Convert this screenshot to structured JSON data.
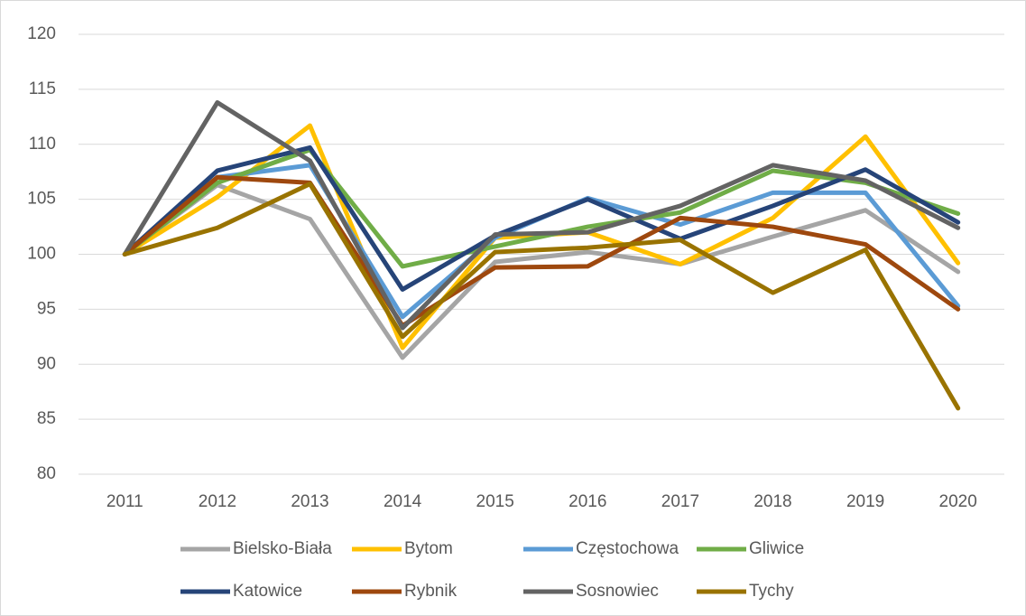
{
  "chart_data": {
    "type": "line",
    "categories": [
      "2011",
      "2012",
      "2013",
      "2014",
      "2015",
      "2016",
      "2017",
      "2018",
      "2019",
      "2020"
    ],
    "ylim": [
      80,
      120
    ],
    "yticks": [
      80,
      85,
      90,
      95,
      100,
      105,
      110,
      115,
      120
    ],
    "grid": true,
    "legend": "bottom",
    "series": [
      {
        "name": "Bielsko-Biała",
        "color": "#a5a5a5",
        "values": [
          100,
          106.3,
          103.2,
          90.6,
          99.3,
          100.2,
          99.1,
          101.6,
          104,
          98.4
        ]
      },
      {
        "name": "Bytom",
        "color": "#ffc000",
        "values": [
          100,
          105.2,
          111.7,
          91.5,
          101.5,
          102,
          99.1,
          103.3,
          110.7,
          99.2
        ]
      },
      {
        "name": "Częstochowa",
        "color": "#5b9bd5",
        "values": [
          100,
          107,
          108.1,
          94.3,
          101.5,
          105.1,
          102.7,
          105.6,
          105.6,
          95.3
        ]
      },
      {
        "name": "Gliwice",
        "color": "#70ad47",
        "values": [
          100,
          106.5,
          109.5,
          98.9,
          100.7,
          102.5,
          103.8,
          107.6,
          106.5,
          103.7
        ]
      },
      {
        "name": "Katowice",
        "color": "#264478",
        "values": [
          100,
          107.6,
          109.7,
          96.8,
          101.7,
          105,
          101.4,
          104.4,
          107.7,
          102.9
        ]
      },
      {
        "name": "Rybnik",
        "color": "#9e480e",
        "values": [
          100,
          107,
          106.5,
          93.5,
          98.8,
          98.9,
          103.3,
          102.5,
          100.9,
          95
        ]
      },
      {
        "name": "Sosnowiec",
        "color": "#636363",
        "values": [
          100,
          113.8,
          108.5,
          93.3,
          101.8,
          102,
          104.4,
          108.1,
          106.7,
          102.4
        ]
      },
      {
        "name": "Tychy",
        "color": "#997300",
        "values": [
          100,
          102.4,
          106.4,
          92.5,
          100.2,
          100.6,
          101.3,
          96.5,
          100.4,
          86
        ]
      }
    ]
  }
}
